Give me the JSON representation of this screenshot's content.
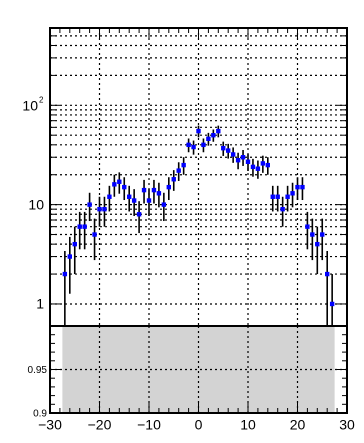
{
  "chart_data": [
    {
      "type": "scatter",
      "title": "",
      "xlabel": "",
      "ylabel": "",
      "ylog": true,
      "xlim": [
        -30,
        30
      ],
      "ylim": [
        0.6,
        600
      ],
      "grid": true,
      "grid_style": "dotted",
      "marker_color": "#0000ff",
      "errorbar_color": "#000000",
      "y_tick_labels": [
        {
          "value": 1,
          "base": "1",
          "exp": ""
        },
        {
          "value": 10,
          "base": "10",
          "exp": ""
        },
        {
          "value": 100,
          "base": "10",
          "exp": "2"
        }
      ],
      "series": [
        {
          "x": [
            -27,
            -26,
            -25,
            -24,
            -23,
            -22,
            -21,
            -20,
            -19,
            -18,
            -17,
            -16,
            -15,
            -14,
            -13,
            -12,
            -11,
            -10,
            -9,
            -8,
            -7,
            -6,
            -5,
            -4,
            -3,
            -2,
            -1,
            0,
            1,
            2,
            3,
            4,
            5,
            6,
            7,
            8,
            9,
            10,
            11,
            12,
            13,
            14,
            15,
            16,
            17,
            18,
            19,
            20,
            21,
            22,
            23,
            24,
            25,
            26,
            27
          ],
          "y": [
            2,
            3,
            4,
            6,
            6,
            10,
            5,
            9,
            9,
            12,
            16,
            17,
            15,
            12,
            11,
            8,
            14,
            11,
            14,
            13,
            10,
            15,
            18,
            22,
            25,
            40,
            38,
            55,
            40,
            46,
            50,
            55,
            37,
            35,
            32,
            28,
            30,
            27,
            24,
            23,
            26,
            25,
            12,
            12,
            9,
            12,
            13,
            15,
            15,
            6,
            5,
            4,
            5,
            2,
            1
          ]
        }
      ]
    },
    {
      "type": "area",
      "title": "",
      "xlabel": "",
      "ylabel": "",
      "xlim": [
        -30,
        30
      ],
      "ylim": [
        0.9,
        1.0
      ],
      "fill_color": "#d3d3d3",
      "band": {
        "x": [
          -27.5,
          27.5
        ],
        "y": [
          0.9,
          1.0
        ]
      },
      "y_tick_labels": [
        "0.9",
        "0.95"
      ],
      "x_tick_labels": [
        "−30",
        "−20",
        "−10",
        "0",
        "10",
        "20",
        "30"
      ]
    }
  ]
}
